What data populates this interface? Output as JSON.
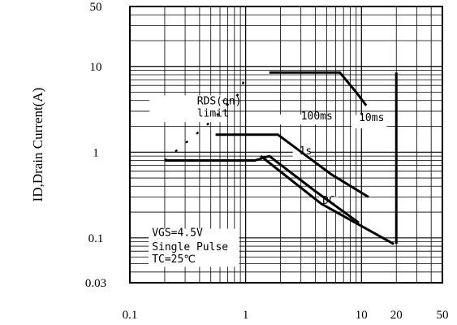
{
  "chart_data": {
    "type": "line",
    "title": "",
    "xlabel": "",
    "ylabel": "ID,Drain Current(A)",
    "x_scale": "log",
    "y_scale": "log",
    "xlim": [
      0.1,
      50
    ],
    "ylim": [
      0.03,
      50
    ],
    "x_ticks": [
      {
        "value": 0.1,
        "label": "0.1"
      },
      {
        "value": 1,
        "label": "1"
      },
      {
        "value": 10,
        "label": "10"
      },
      {
        "value": 20,
        "label": "20"
      },
      {
        "value": 50,
        "label": "50"
      }
    ],
    "y_ticks": [
      {
        "value": 50,
        "label": "50"
      },
      {
        "value": 10,
        "label": "10"
      },
      {
        "value": 1,
        "label": "1"
      },
      {
        "value": 0.1,
        "label": "0.1"
      },
      {
        "value": 0.03,
        "label": "0.03"
      }
    ],
    "grid": true,
    "legend": "none",
    "series": [
      {
        "name": "RDS(on) limit",
        "style": "dotted",
        "points": [
          [
            0.2,
            0.8
          ],
          [
            0.45,
            2.0
          ],
          [
            0.9,
            5.0
          ],
          [
            1.0,
            8.0
          ]
        ]
      },
      {
        "name": "100ms",
        "points": [
          [
            0.55,
            1.6
          ],
          [
            1.6,
            1.6
          ],
          [
            1.9,
            1.6
          ],
          [
            5.5,
            0.55
          ],
          [
            11.5,
            0.3
          ]
        ]
      },
      {
        "name": "10ms",
        "points": [
          [
            1.6,
            8.5
          ],
          [
            6.5,
            8.5
          ],
          [
            9.0,
            5.0
          ],
          [
            11.0,
            3.5
          ]
        ]
      },
      {
        "name": "1s",
        "points": [
          [
            0.2,
            0.8
          ],
          [
            1.2,
            0.8
          ],
          [
            1.6,
            0.9
          ],
          [
            4.0,
            0.35
          ],
          [
            9.5,
            0.15
          ]
        ]
      },
      {
        "name": "DC",
        "points": [
          [
            1.35,
            0.9
          ],
          [
            4.5,
            0.25
          ],
          [
            19.0,
            0.085
          ]
        ]
      }
    ],
    "boundary": {
      "x": 20,
      "y_from": 0.085,
      "y_to": 8.5
    },
    "annotations": [
      {
        "text": "RDS(on)",
        "at": [
          0.38,
          3.6
        ]
      },
      {
        "text": "limit",
        "at": [
          0.38,
          2.6
        ]
      },
      {
        "text": "100ms",
        "at": [
          3.0,
          2.4
        ]
      },
      {
        "text": "10ms",
        "at": [
          9.5,
          2.3
        ]
      },
      {
        "text": "1s",
        "at": [
          2.9,
          0.94
        ]
      },
      {
        "text": "DC",
        "at": [
          4.6,
          0.25
        ]
      },
      {
        "text": "VGS=4.5V",
        "at": [
          0.155,
          0.105
        ]
      },
      {
        "text": "Single Pulse",
        "at": [
          0.155,
          0.072
        ]
      },
      {
        "text": "TC=25℃",
        "at": [
          0.155,
          0.052
        ]
      }
    ]
  },
  "colors": {
    "ink": "#000000",
    "box": "#ffffff"
  }
}
